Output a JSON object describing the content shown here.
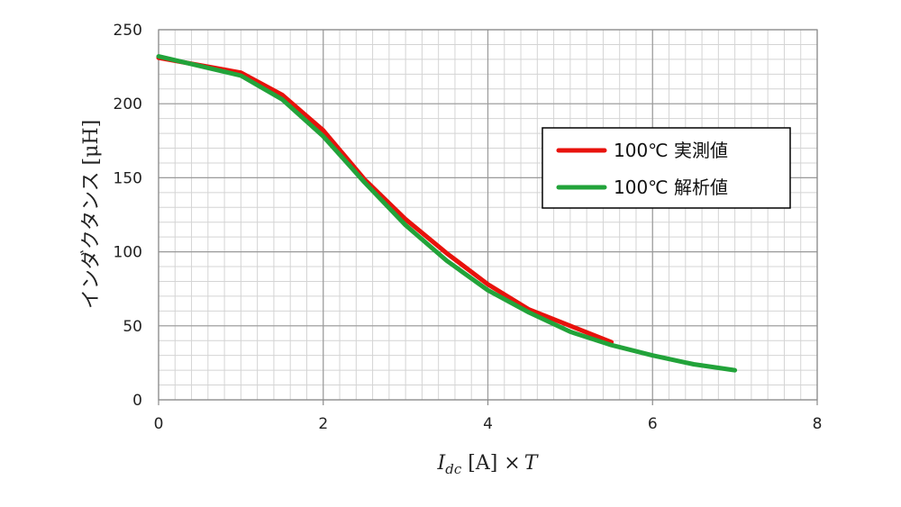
{
  "chart_data": {
    "type": "line",
    "xlim": [
      0,
      8
    ],
    "ylim": [
      0,
      250
    ],
    "x_ticks": [
      "0",
      "2",
      "4",
      "6",
      "8"
    ],
    "y_ticks": [
      "0",
      "50",
      "100",
      "150",
      "200",
      "250"
    ],
    "minor_grid": true,
    "legend_position": "top-right",
    "ylabel": "インダクタンス [μH]",
    "xlabel": {
      "pre": "I",
      "sub": "dc",
      "mid": " [A] ×",
      "post": "T"
    },
    "series": [
      {
        "name": "100℃ 実測値",
        "color": "#e8120c",
        "x": [
          0,
          1.0,
          1.5,
          2.0,
          2.5,
          3.0,
          3.5,
          4.0,
          4.5,
          5.0,
          5.5
        ],
        "y": [
          231,
          221,
          206,
          182,
          149,
          122,
          99,
          78,
          61,
          50,
          39
        ]
      },
      {
        "name": "100℃ 解析値",
        "color": "#22a33a",
        "x": [
          0,
          1.0,
          1.5,
          2.0,
          2.5,
          3.0,
          3.5,
          4.0,
          4.5,
          5.0,
          5.5,
          6.0,
          6.5,
          7.0
        ],
        "y": [
          232,
          219,
          203,
          178,
          147,
          118,
          94,
          74,
          59,
          46,
          37,
          30,
          24,
          20
        ]
      }
    ]
  }
}
